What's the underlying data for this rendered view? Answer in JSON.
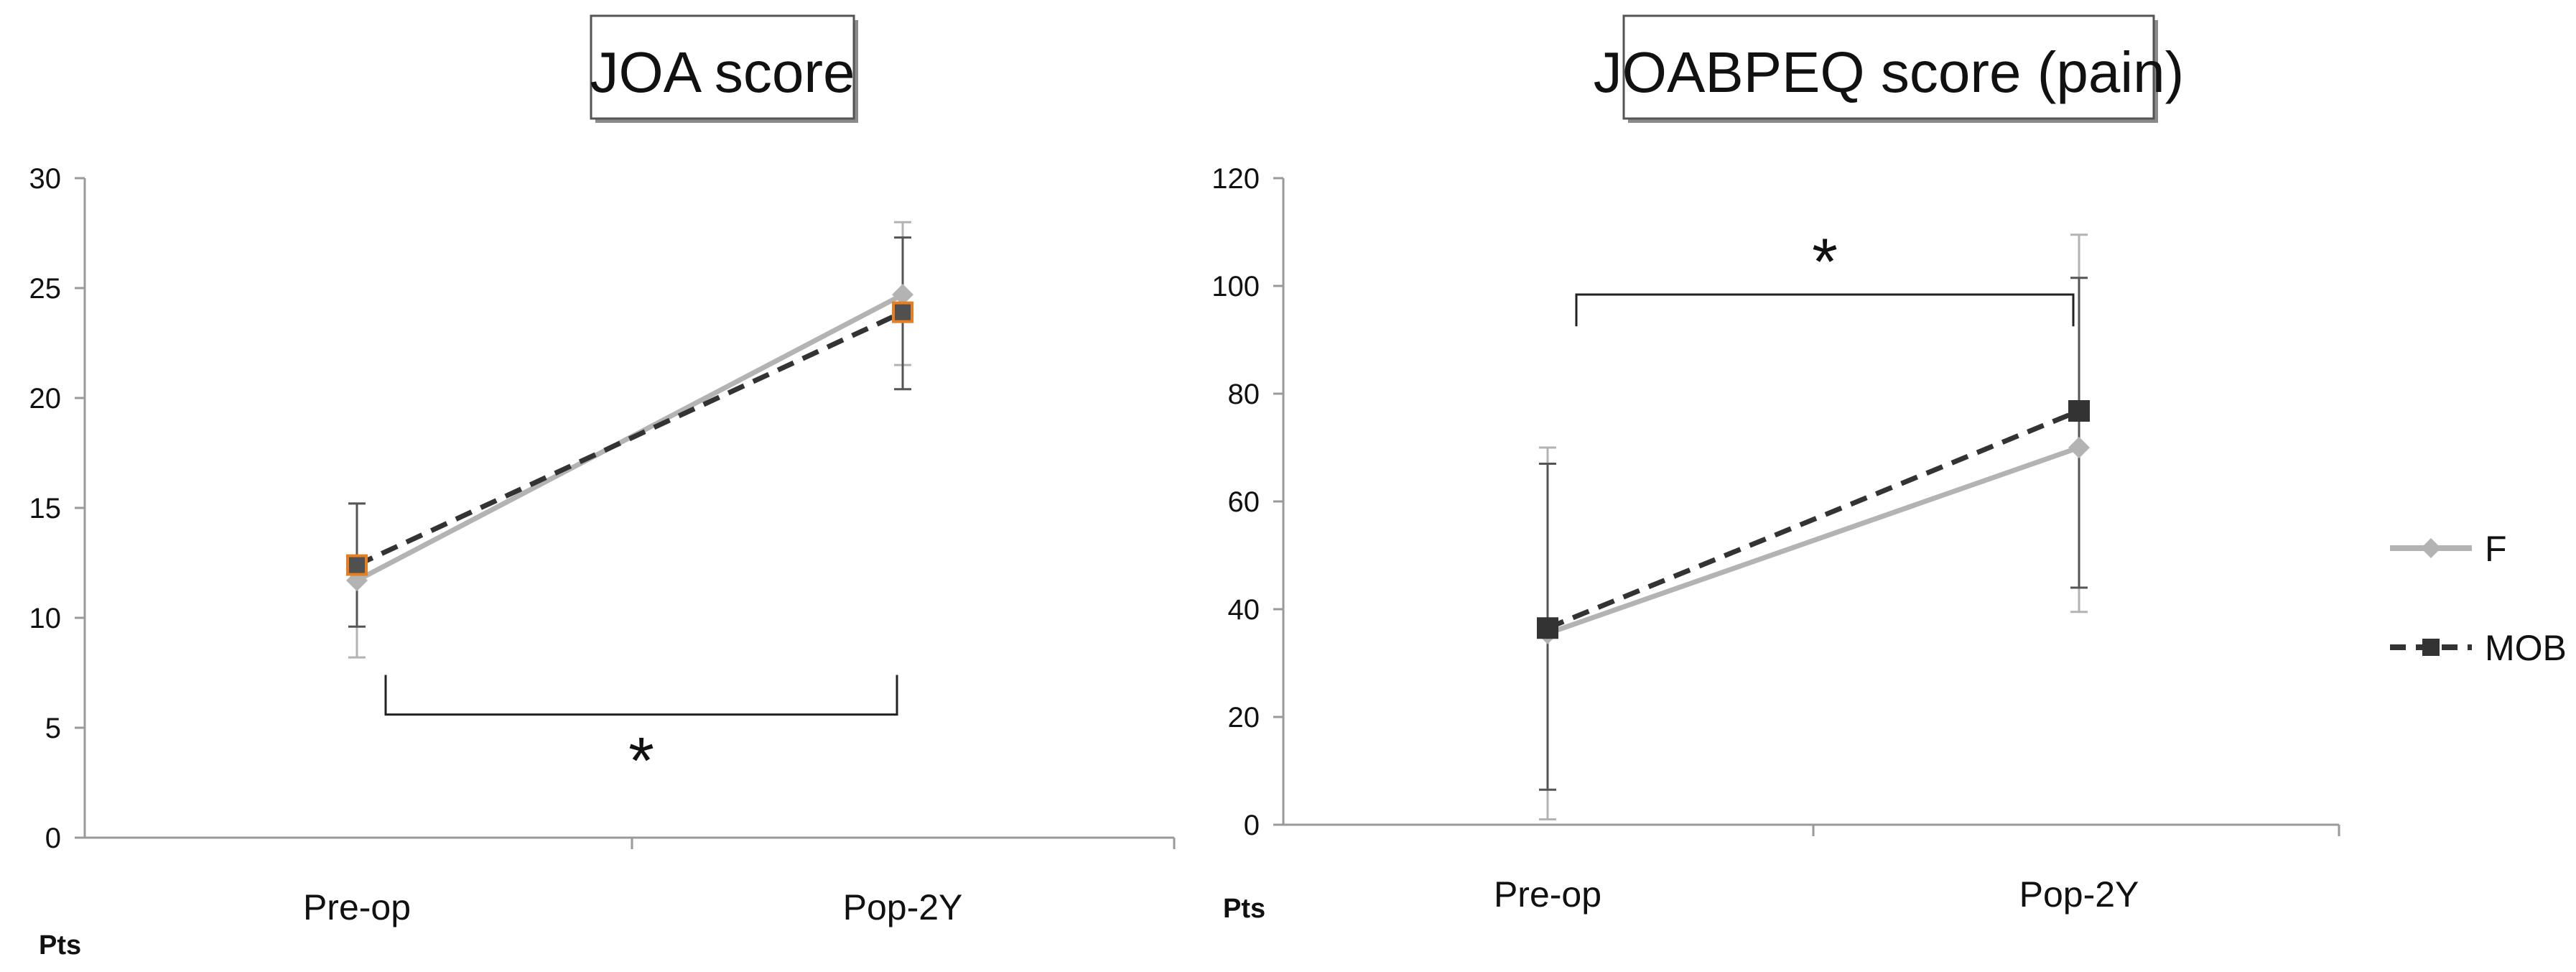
{
  "chart_data": [
    {
      "type": "line",
      "title": "JOA score",
      "ylabel": "Pts",
      "xlabel": "",
      "categories": [
        "Pre-op",
        "Pop-2Y"
      ],
      "ylim": [
        0,
        30
      ],
      "yticks": [
        "0",
        "5",
        "10",
        "15",
        "20",
        "25",
        "30"
      ],
      "grid": false,
      "series": [
        {
          "name": "F",
          "values": [
            11.7,
            24.7
          ],
          "err_low": [
            8.2,
            21.5
          ],
          "err_high": [
            15.2,
            28.0
          ]
        },
        {
          "name": "MOB",
          "values": [
            12.4,
            23.9
          ],
          "err_low": [
            9.6,
            20.4
          ],
          "err_high": [
            15.2,
            27.3
          ]
        }
      ],
      "significance": {
        "label": "*",
        "between": [
          "Pre-op",
          "Pop-2Y"
        ]
      }
    },
    {
      "type": "line",
      "title": "JOABPEQ score (pain)",
      "ylabel": "Pts",
      "xlabel": "",
      "categories": [
        "Pre-op",
        "Pop-2Y"
      ],
      "ylim": [
        0,
        120
      ],
      "yticks": [
        "0",
        "20",
        "40",
        "60",
        "80",
        "100",
        "120"
      ],
      "grid": false,
      "series": [
        {
          "name": "F",
          "values": [
            35.5,
            70.0
          ],
          "err_low": [
            1.0,
            39.5
          ],
          "err_high": [
            70.0,
            109.5
          ]
        },
        {
          "name": "MOB",
          "values": [
            36.5,
            76.8
          ],
          "err_low": [
            6.5,
            44.0
          ],
          "err_high": [
            67.0,
            101.5
          ]
        }
      ],
      "significance": {
        "label": "*",
        "between": [
          "Pre-op",
          "Pop-2Y"
        ]
      }
    }
  ],
  "legend": {
    "placement": "right",
    "items": [
      {
        "name": "F",
        "color": "#b3b3b3",
        "marker": "diamond",
        "dash": "solid"
      },
      {
        "name": "MOB",
        "color": "#333333",
        "marker": "square",
        "dash": "dashed"
      }
    ]
  },
  "colors": {
    "f_line": "#b3b3b3",
    "mob_line": "#333333",
    "mob_marker_left_chart": "#505050",
    "mob_marker_edge_left_chart": "#e67e22",
    "axis": "#9a9a9a",
    "text": "#111111"
  }
}
